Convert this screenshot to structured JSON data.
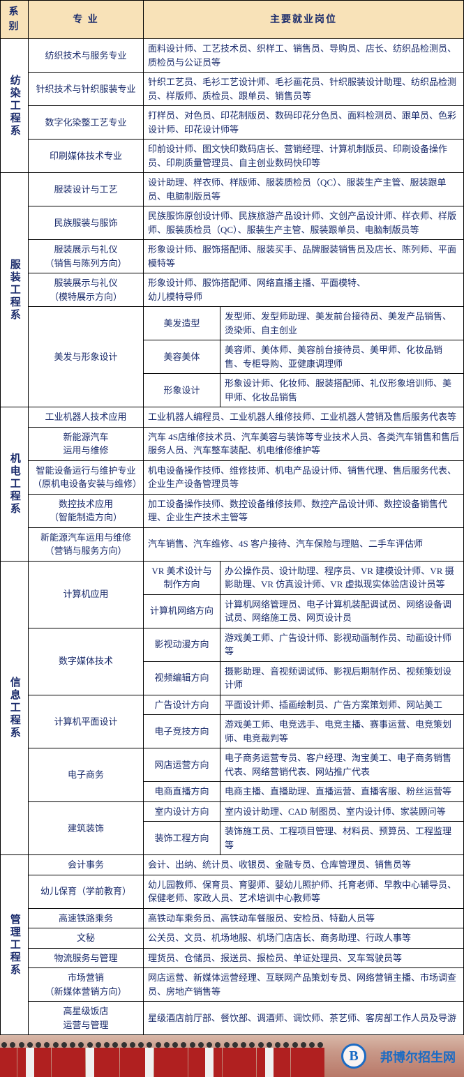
{
  "headers": {
    "dept": "系别",
    "major": "专 业",
    "jobs": "主要就业岗位"
  },
  "departments": [
    {
      "name": "纺染工程系",
      "rows": [
        {
          "major": "纺织技术与服务专业",
          "jobs": "面料设计师、工艺技术员、织样工、销售员、导购员、店长、纺织品检测员、质检员与公证员等"
        },
        {
          "major": "针织技术与针织服装专业",
          "jobs": "针织工艺员、毛衫工艺设计师、毛衫画花员、针织服装设计助理、纺织品检测员、样版师、质检员、跟单员、销售员等"
        },
        {
          "major": "数字化染整工艺专业",
          "jobs": "打样员、对色员、印花制版员、数码印花分色员、面料检测员、跟单员、色彩设计师、印花设计师等"
        },
        {
          "major": "印刷媒体技术专业",
          "jobs": "印前设计师、图文快印数码店长、营销经理、计算机制版员、印刷设备操作员、印刷质量管理员、自主创业数码快印等"
        }
      ]
    },
    {
      "name": "服装工程系",
      "rows": [
        {
          "major": "服装设计与工艺",
          "jobs": "设计助理、样衣师、样版师、服装质检员（QC）、服装生产主管、服装跟单员、电脑制版员等"
        },
        {
          "major": "民族服装与服饰",
          "jobs": "民族服饰原创设计师、民族旅游产品设计师、文创产品设计师、样衣师、样版师、服装质检员（QC）、服装生产主管、服装跟单员、电脑制版员等"
        },
        {
          "major": "服装展示与礼仪\n（销售与陈列方向）",
          "jobs": "形象设计师、服饰搭配师、服装买手、品牌服装销售员及店长、陈列师、平面模特等"
        },
        {
          "major": "服装展示与礼仪\n（模特展示方向）",
          "jobs": "形象设计师、服饰搭配师、网络直播主播、平面模特、\n幼儿模特导师"
        },
        {
          "major": "美发与形象设计",
          "subs": [
            {
              "sub": "美发造型",
              "jobs": "发型师、发型师助理、美发前台接待员、美发产品销售、烫染师、自主创业"
            },
            {
              "sub": "美容美体",
              "jobs": "美容师、美体师、美容前台接待员、美甲师、化妆品销售、专柜导购、亚健康调理师"
            },
            {
              "sub": "形象设计",
              "jobs": "形象设计师、化妆师、服装搭配师、礼仪形象培训师、美甲师、化妆品销售"
            }
          ]
        }
      ]
    },
    {
      "name": "机电工程系",
      "rows": [
        {
          "major": "工业机器人技术应用",
          "jobs": "工业机器人编程员、工业机器人维修技师、工业机器人营销及售后服务代表等"
        },
        {
          "major": "新能源汽车\n运用与维修",
          "jobs": "汽车 4S店维修技术员、汽车美容与装饰等专业技术人员、各类汽车销售和售后服务人员、汽车整车装配、机电维修维护等"
        },
        {
          "major": "智能设备运行与维护专业（原机电设备安装与维修）",
          "jobs": "机电设备操作技师、维修技师、机电产品设计师、销售代理、售后服务代表、企业生产设备管理员等"
        },
        {
          "major": "数控技术应用\n（智能制造方向）",
          "jobs": "加工设备操作技师、数控设备维修技师、数控产品设计师、数控设备销售代理、企业生产技术主管等"
        },
        {
          "major": "新能源汽车运用与维修（营销与服务方向）",
          "jobs": "汽车销售、汽车维修、4S 客户接待、汽车保险与理赔、二手车评估师"
        }
      ]
    },
    {
      "name": "信息工程系",
      "rows": [
        {
          "major": "计算机应用",
          "subs": [
            {
              "sub": "VR 美术设计与制作方向",
              "jobs": "办公操作员、设计助理、程序员、VR 建模设计师、VR 摄影助理、VR 仿真设计师、VR 虚拟现实体验店设计员等"
            },
            {
              "sub": "计算机网络方向",
              "jobs": "计算机网络管理员、电子计算机装配调试员、网络设备调试员、网络施工员、网页设计员"
            }
          ]
        },
        {
          "major": "数字媒体技术",
          "subs": [
            {
              "sub": "影视动漫方向",
              "jobs": "游戏美工师、广告设计师、影视动画制作员、动画设计师等"
            },
            {
              "sub": "视频编辑方向",
              "jobs": "摄影助理、音视频调试师、影视后期制作员、视频策划设计师"
            }
          ]
        },
        {
          "major": "计算机平面设计",
          "subs": [
            {
              "sub": "广告设计方向",
              "jobs": "平面设计师、插画绘制员、广告方案策划师、网站美工"
            },
            {
              "sub": "电子竞技方向",
              "jobs": "游戏美工师、电竞选手、电竞主播、赛事运营、电竞策划师、电竞裁判等"
            }
          ]
        },
        {
          "major": "电子商务",
          "subs": [
            {
              "sub": "网店运营方向",
              "jobs": "电子商务运营专员、客户经理、淘宝美工、电子商务销售代表、网络营销代表、网站推广代表"
            },
            {
              "sub": "电商直播方向",
              "jobs": "电商主播、直播助理、直播运营、直播客服、粉丝运营等"
            }
          ]
        },
        {
          "major": "建筑装饰",
          "subs": [
            {
              "sub": "室内设计方向",
              "jobs": "室内设计助理、CAD 制图员、室内设计师、家装顾问等"
            },
            {
              "sub": "装饰工程方向",
              "jobs": "装饰施工员、工程项目管理、材料员、预算员、工程监理等"
            }
          ]
        }
      ]
    },
    {
      "name": "管理工程系",
      "rows": [
        {
          "major": "会计事务",
          "jobs": "会计、出纳、统计员、收银员、金融专员、仓库管理员、销售员等"
        },
        {
          "major": "幼儿保育（学前教育）",
          "jobs": "幼儿园教师、保育员、育婴师、婴幼儿照护师、托育老师、早教中心辅导员、保健老师、家政人员、艺术培训中心教师等"
        },
        {
          "major": "高速铁路乘务",
          "jobs": "高铁动车乘务员、高铁动车餐服员、安检员、特勤人员等"
        },
        {
          "major": "文秘",
          "jobs": "公关员、文员、机场地服、机场门店店长、商务助理、行政人事等"
        },
        {
          "major": "物流服务与管理",
          "jobs": "理货员、仓储员、报送员、报检员、单证处理员、叉车驾驶员等"
        },
        {
          "major": "市场营销\n（新媒体营销方向）",
          "jobs": "网店运营、新媒体运营经理、互联网产品策划专员、网络营销主播、市场调查员、房地产销售等"
        },
        {
          "major": "高星级饭店\n运营与管理",
          "jobs": "星级酒店前厅部、餐饮部、调酒师、调饮师、茶艺师、客房部工作人员及导游"
        }
      ]
    }
  ],
  "footer": {
    "logo": "B",
    "brand": "邦博尔招生网"
  },
  "colors": {
    "header_bg": "#f8e2b8",
    "text": "#1a2b6b",
    "border": "#000000",
    "logo": "#1a6bc4"
  }
}
